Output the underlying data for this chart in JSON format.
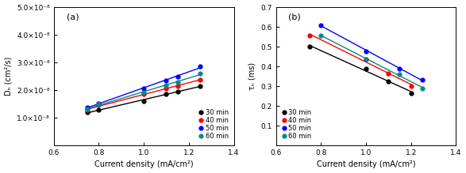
{
  "panel_a": {
    "xlabel": "Current density (mA/cm²)",
    "ylabel": "Dₙ (cm²/s)",
    "xlim": [
      0.6,
      1.4
    ],
    "ylim": [
      0.0,
      5e-08
    ],
    "yticks": [
      1e-08,
      2e-08,
      3e-08,
      4e-08,
      5e-08
    ],
    "ytick_labels": [
      "1.0×10⁻⁸",
      "2.0×10⁻⁸",
      "3.0×10⁻⁸",
      "4.0×10⁻⁸",
      "5.0×10⁻⁸"
    ],
    "xticks": [
      0.6,
      0.8,
      1.0,
      1.2,
      1.4
    ],
    "label": "(a)",
    "series": [
      {
        "name": "30 min",
        "color": "#000000",
        "x": [
          0.75,
          0.8,
          1.0,
          1.1,
          1.15,
          1.25
        ],
        "y": [
          1.2e-08,
          1.28e-08,
          1.6e-08,
          1.85e-08,
          1.95e-08,
          2.15e-08
        ]
      },
      {
        "name": "40 min",
        "color": "#ff0000",
        "x": [
          0.75,
          0.8,
          1.0,
          1.1,
          1.15,
          1.25
        ],
        "y": [
          1.28e-08,
          1.45e-08,
          1.85e-08,
          2.05e-08,
          2.15e-08,
          2.38e-08
        ]
      },
      {
        "name": "50 min",
        "color": "#0000ff",
        "x": [
          0.75,
          0.8,
          1.0,
          1.1,
          1.15,
          1.25
        ],
        "y": [
          1.38e-08,
          1.52e-08,
          2.05e-08,
          2.35e-08,
          2.5e-08,
          2.85e-08
        ]
      },
      {
        "name": "60 min",
        "color": "#008B8B",
        "x": [
          0.75,
          0.8,
          1.0,
          1.1,
          1.15,
          1.25
        ],
        "y": [
          1.32e-08,
          1.48e-08,
          1.92e-08,
          2.18e-08,
          2.28e-08,
          2.6e-08
        ]
      }
    ]
  },
  "panel_b": {
    "xlabel": "Current density (mA/cm²)",
    "ylabel": "τₙ (ms)",
    "xlim": [
      0.6,
      1.4
    ],
    "ylim": [
      0.0,
      0.7
    ],
    "yticks": [
      0.1,
      0.2,
      0.3,
      0.4,
      0.5,
      0.6,
      0.7
    ],
    "xticks": [
      0.6,
      0.8,
      1.0,
      1.2,
      1.4
    ],
    "label": "(b)",
    "series": [
      {
        "name": "30 min",
        "color": "#000000",
        "x": [
          0.75,
          1.0,
          1.1,
          1.2
        ],
        "y": [
          0.5,
          0.39,
          0.325,
          0.265
        ]
      },
      {
        "name": "40 min",
        "color": "#ff0000",
        "x": [
          0.75,
          1.0,
          1.1,
          1.2
        ],
        "y": [
          0.558,
          0.435,
          0.365,
          0.302
        ]
      },
      {
        "name": "50 min",
        "color": "#0000ff",
        "x": [
          0.8,
          1.0,
          1.15,
          1.25
        ],
        "y": [
          0.61,
          0.475,
          0.39,
          0.332
        ]
      },
      {
        "name": "60 min",
        "color": "#008B8B",
        "x": [
          0.8,
          1.0,
          1.15,
          1.25
        ],
        "y": [
          0.558,
          0.435,
          0.36,
          0.29
        ]
      }
    ]
  },
  "legend_loc_a": "lower right",
  "legend_loc_b": "lower left",
  "marker_size": 3.5,
  "linewidth": 1.0,
  "fontsize_label": 7,
  "fontsize_tick": 6.5,
  "fontsize_legend": 6,
  "fontsize_panel_label": 8
}
